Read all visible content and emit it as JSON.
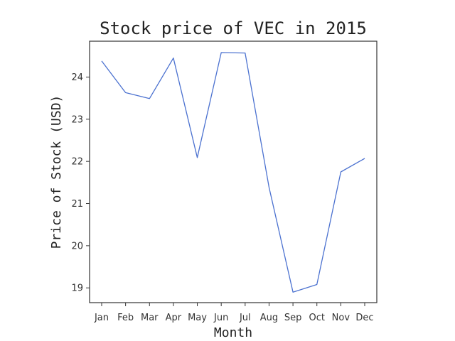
{
  "chart_data": {
    "type": "line",
    "title": "Stock price of VEC in 2015",
    "xlabel": "Month",
    "ylabel": "Price of Stock (USD)",
    "categories": [
      "Jan",
      "Feb",
      "Mar",
      "Apr",
      "May",
      "Jun",
      "Jul",
      "Aug",
      "Sep",
      "Oct",
      "Nov",
      "Dec"
    ],
    "series": [
      {
        "values": [
          24.38,
          23.63,
          23.49,
          24.45,
          22.09,
          24.58,
          24.57,
          21.38,
          18.9,
          19.08,
          21.75,
          22.07
        ],
        "color": "#4c72d0"
      }
    ],
    "yticks": [
      19,
      20,
      21,
      22,
      23,
      24
    ],
    "ylim": [
      18.65,
      24.85
    ],
    "grid": false,
    "legend": "none"
  }
}
